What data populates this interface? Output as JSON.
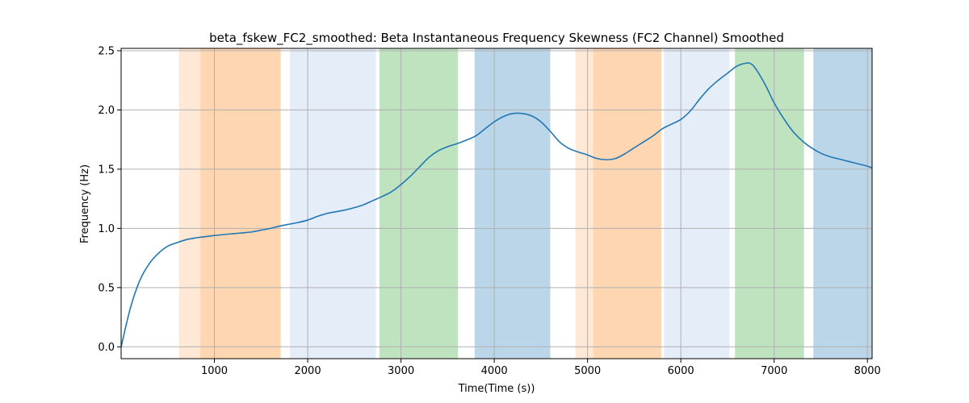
{
  "chart_data": {
    "type": "line",
    "title": "beta_fskew_FC2_smoothed: Beta Instantaneous Frequency Skewness (FC2 Channel) Smoothed",
    "xlabel": "Time(Time (s))",
    "ylabel": "Frequency (Hz)",
    "xlim": [
      0,
      8050
    ],
    "ylim": [
      -0.1,
      2.52
    ],
    "xticks": [
      1000,
      2000,
      3000,
      4000,
      5000,
      6000,
      7000,
      8000
    ],
    "yticks": [
      0.0,
      0.5,
      1.0,
      1.5,
      2.0,
      2.5
    ],
    "grid": true,
    "line_color": "#1f77b4",
    "bands": [
      {
        "x0": 620,
        "x1": 850,
        "color": "#ff7f0e",
        "opacity": 0.17
      },
      {
        "x0": 850,
        "x1": 1710,
        "color": "#ff7f0e",
        "opacity": 0.32
      },
      {
        "x0": 1810,
        "x1": 2730,
        "color": "#aec7e8",
        "opacity": 0.32
      },
      {
        "x0": 2770,
        "x1": 3610,
        "color": "#2ca02c",
        "opacity": 0.3
      },
      {
        "x0": 3790,
        "x1": 4600,
        "color": "#1f77b4",
        "opacity": 0.3
      },
      {
        "x0": 4870,
        "x1": 5060,
        "color": "#ff7f0e",
        "opacity": 0.17
      },
      {
        "x0": 5060,
        "x1": 5790,
        "color": "#ff7f0e",
        "opacity": 0.32
      },
      {
        "x0": 5820,
        "x1": 6520,
        "color": "#aec7e8",
        "opacity": 0.32
      },
      {
        "x0": 6580,
        "x1": 7320,
        "color": "#2ca02c",
        "opacity": 0.3
      },
      {
        "x0": 7420,
        "x1": 8050,
        "color": "#1f77b4",
        "opacity": 0.3
      }
    ],
    "series": [
      {
        "x": [
          0,
          100,
          200,
          300,
          400,
          500,
          600,
          700,
          800,
          900,
          1000,
          1100,
          1200,
          1300,
          1400,
          1500,
          1600,
          1700,
          1800,
          1900,
          2000,
          2100,
          2200,
          2300,
          2400,
          2500,
          2600,
          2700,
          2800,
          2900,
          3000,
          3100,
          3200,
          3300,
          3400,
          3500,
          3600,
          3700,
          3800,
          3900,
          4000,
          4100,
          4200,
          4300,
          4400,
          4500,
          4600,
          4700,
          4800,
          4900,
          5000,
          5100,
          5200,
          5300,
          5400,
          5500,
          5600,
          5700,
          5800,
          5900,
          6000,
          6100,
          6200,
          6300,
          6400,
          6500,
          6600,
          6700,
          6750,
          6800,
          6900,
          7000,
          7100,
          7200,
          7300,
          7400,
          7500,
          7600,
          7700,
          7800,
          7900,
          8000,
          8050
        ],
        "y": [
          0.0,
          0.33,
          0.56,
          0.7,
          0.79,
          0.85,
          0.88,
          0.905,
          0.92,
          0.93,
          0.94,
          0.948,
          0.955,
          0.962,
          0.97,
          0.985,
          1.0,
          1.02,
          1.035,
          1.05,
          1.07,
          1.1,
          1.125,
          1.14,
          1.155,
          1.175,
          1.2,
          1.235,
          1.27,
          1.31,
          1.37,
          1.44,
          1.52,
          1.6,
          1.655,
          1.69,
          1.715,
          1.745,
          1.78,
          1.84,
          1.9,
          1.945,
          1.97,
          1.97,
          1.95,
          1.9,
          1.82,
          1.73,
          1.675,
          1.645,
          1.62,
          1.59,
          1.58,
          1.59,
          1.63,
          1.68,
          1.73,
          1.78,
          1.84,
          1.88,
          1.92,
          1.99,
          2.09,
          2.18,
          2.25,
          2.31,
          2.37,
          2.395,
          2.39,
          2.35,
          2.22,
          2.06,
          1.93,
          1.82,
          1.74,
          1.68,
          1.635,
          1.605,
          1.585,
          1.565,
          1.545,
          1.525,
          1.51
        ]
      }
    ]
  }
}
